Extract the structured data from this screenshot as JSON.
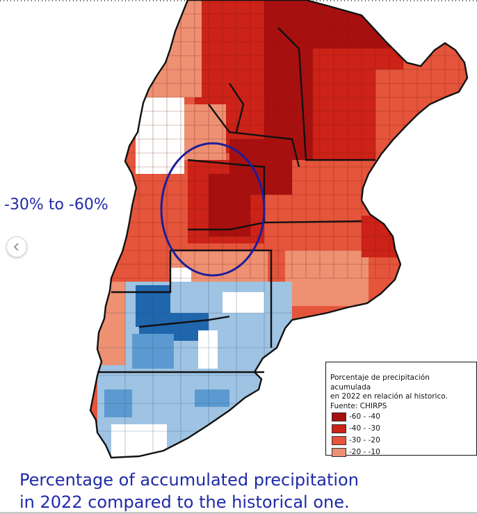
{
  "annotation": {
    "label": "-30% to -60%"
  },
  "legend": {
    "title_lines": [
      "Porcentaje de precipitación acumulada",
      "en 2022 en relación al historico.",
      "Fuente: CHIRPS"
    ],
    "items": [
      {
        "label": "-60 - -40",
        "color": "#a8100f"
      },
      {
        "label": "-40 - -30",
        "color": "#cc2218"
      },
      {
        "label": "-30 - -20",
        "color": "#e4553b"
      },
      {
        "label": "-20 - -10",
        "color": "#ee9072"
      }
    ]
  },
  "caption": {
    "line1": "Percentage of accumulated precipitation",
    "line2": "in 2022 compared to the historical one."
  },
  "palette": {
    "dark_red": "#a8100f",
    "red": "#cc2218",
    "orange_red": "#e4553b",
    "salmon": "#ee9072",
    "light_blue": "#9fc3e2",
    "mid_blue": "#5b9ad0",
    "dark_blue": "#1f66ad",
    "no_data": "#ffffff",
    "ellipse": "#1c1c9a"
  },
  "icons": {
    "previous": "chevron-left-icon"
  }
}
